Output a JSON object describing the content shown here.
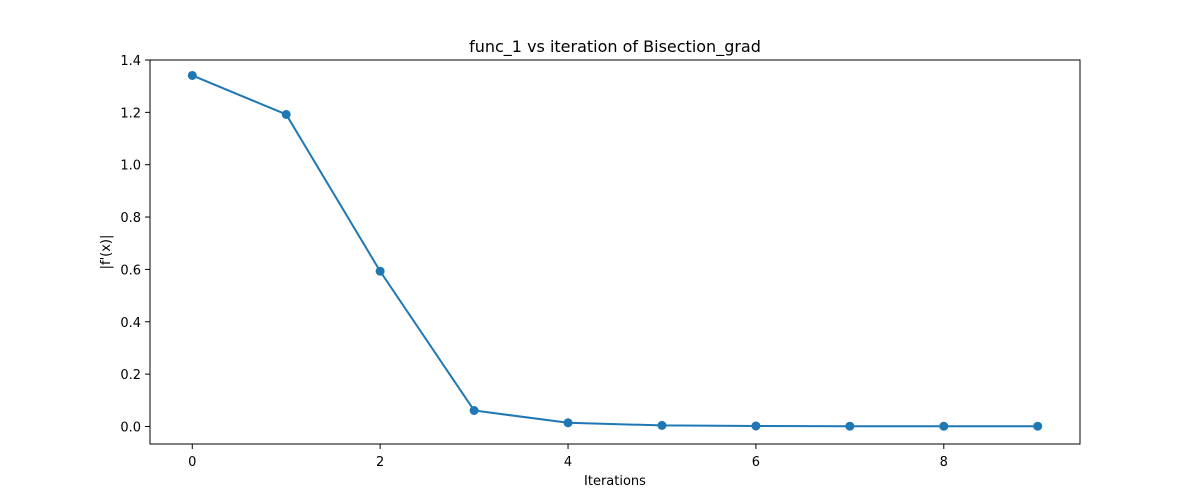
{
  "chart_data": {
    "type": "line",
    "title": "func_1 vs iteration of Bisection_grad",
    "xlabel": "Iterations",
    "ylabel": "|f'(x)|",
    "x": [
      0,
      1,
      2,
      3,
      4,
      5,
      6,
      7,
      8,
      9
    ],
    "y": [
      1.341,
      1.192,
      0.593,
      0.061,
      0.014,
      0.004,
      0.002,
      0.001,
      0.001,
      0.001
    ],
    "xlim": [
      -0.45,
      9.45
    ],
    "ylim": [
      -0.067,
      1.4
    ],
    "xticks": [
      0,
      2,
      4,
      6,
      8
    ],
    "xtick_labels": [
      "0",
      "2",
      "4",
      "6",
      "8"
    ],
    "yticks": [
      0.0,
      0.2,
      0.4,
      0.6,
      0.8,
      1.0,
      1.2,
      1.4
    ],
    "ytick_labels": [
      "0.0",
      "0.2",
      "0.4",
      "0.6",
      "0.8",
      "1.0",
      "1.2",
      "1.4"
    ],
    "grid": false,
    "markers": true,
    "color": "#1f77b4"
  }
}
